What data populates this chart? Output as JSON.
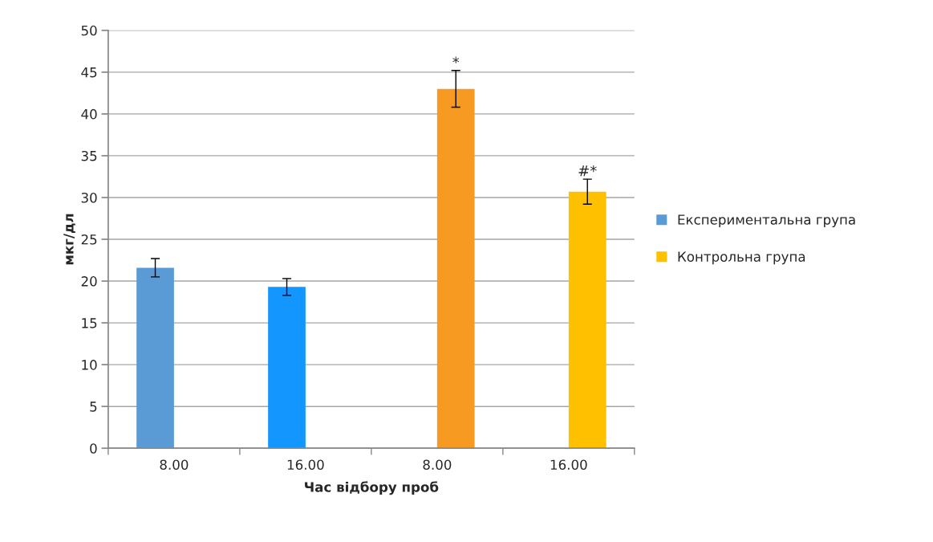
{
  "chart_data": {
    "type": "bar",
    "xlabel": "Час відбору проб",
    "ylabel": "мкг/дл",
    "categories": [
      "8.00",
      "16.00",
      "8.00",
      "16.00"
    ],
    "series": [
      {
        "name": "Експериментальна група",
        "color": "#5b9bd5",
        "colors": [
          "#5b9bd5",
          "#1496ff",
          null,
          null
        ],
        "values": [
          21.6,
          19.3,
          null,
          null
        ],
        "errors": [
          1.1,
          1.0,
          null,
          null
        ]
      },
      {
        "name": "Контрольна група",
        "color": "#ffc000",
        "colors": [
          null,
          null,
          "#f79a21",
          "#ffc000"
        ],
        "values": [
          null,
          null,
          43.0,
          30.7
        ],
        "errors": [
          null,
          null,
          2.2,
          1.5
        ]
      }
    ],
    "ylim": [
      0,
      50
    ],
    "yticks": [
      0,
      5,
      10,
      15,
      20,
      25,
      30,
      35,
      40,
      45,
      50
    ],
    "grid": "y",
    "legend": "right",
    "annotations": [
      {
        "text": "*",
        "y": 45.2
      },
      {
        "text": "#*",
        "y": 32.2
      }
    ]
  }
}
